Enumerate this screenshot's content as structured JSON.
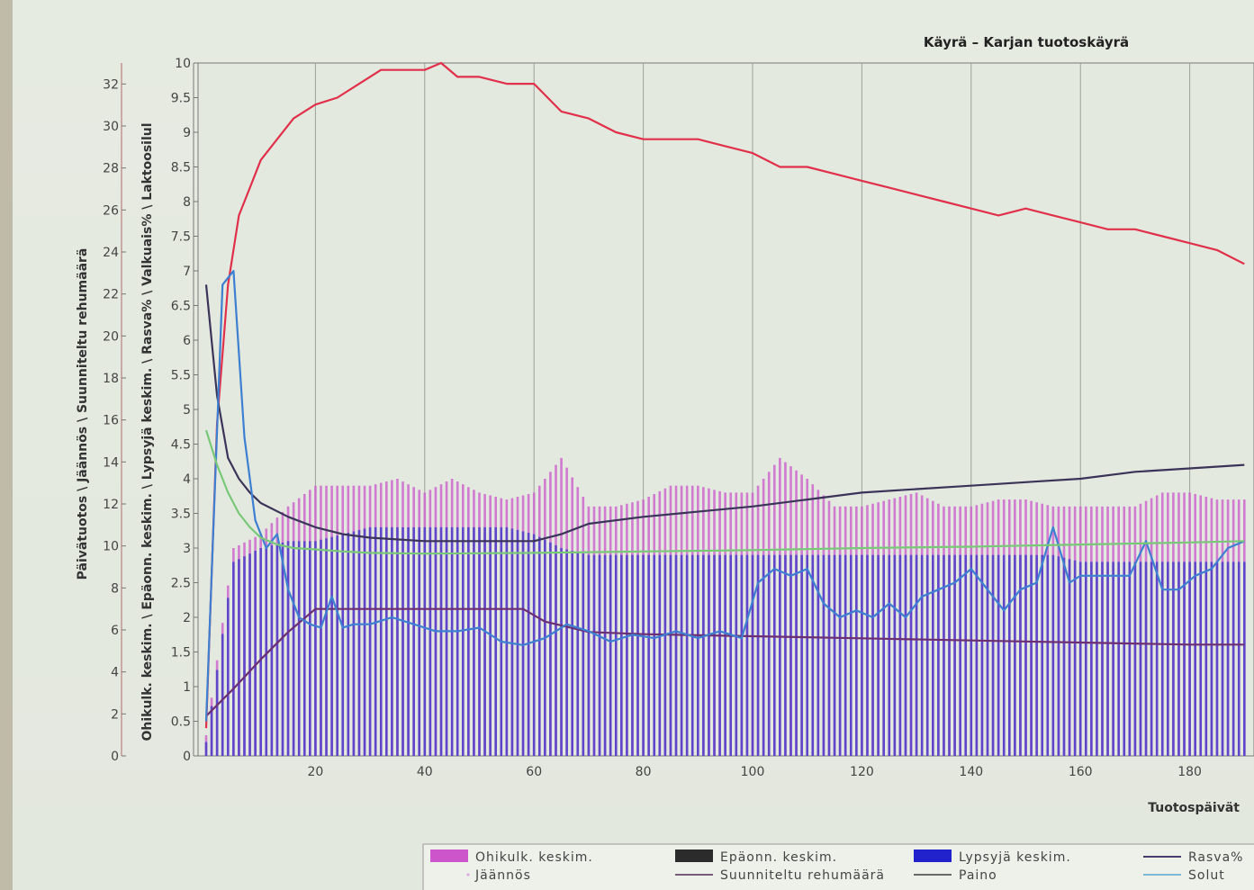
{
  "chart_data": {
    "type": "bar",
    "title": "Käyrä – Karjan tuotoskäyrä",
    "xlabel": "Tuotospäivät",
    "ylabel_outer": "Päivätuotos \\ Jäännös \\ Suunniteltu rehumäärä",
    "ylabel_inner": "Ohikulk. keskim. \\ Epäonn. keskim. \\ Lypsyjä keskim. \\ Rasva% \\ Valkuais% \\ Laktoosilul",
    "xlim": [
      0,
      190
    ],
    "x_ticks": [
      "20",
      "40",
      "60",
      "80",
      "100",
      "120",
      "140",
      "160",
      "180"
    ],
    "y_outer_ticks": [
      "0",
      "2",
      "4",
      "6",
      "8",
      "10",
      "12",
      "14",
      "16",
      "18",
      "20",
      "22",
      "24",
      "26",
      "28",
      "30",
      "32"
    ],
    "y_inner_ticks": [
      "0",
      "0.5",
      "1",
      "1.5",
      "2",
      "2.5",
      "3",
      "3.5",
      "4",
      "4.5",
      "5",
      "5.5",
      "6",
      "6.5",
      "7",
      "7.5",
      "8",
      "8.5",
      "9",
      "9.5",
      "10"
    ],
    "ylim_outer": [
      0,
      33
    ],
    "ylim_inner": [
      0,
      10
    ],
    "grid": "vertical",
    "legend_position": "bottom",
    "series": [
      {
        "name": "Ohikulk. keskim.",
        "kind": "bar",
        "axis": "inner",
        "color": "#cc66cc",
        "x": [
          0,
          5,
          10,
          15,
          20,
          25,
          30,
          35,
          40,
          45,
          50,
          55,
          60,
          65,
          70,
          75,
          80,
          85,
          90,
          95,
          100,
          105,
          110,
          115,
          120,
          125,
          130,
          135,
          140,
          145,
          150,
          155,
          160,
          165,
          170,
          175,
          180,
          185,
          190
        ],
        "y": [
          0.3,
          3.0,
          3.2,
          3.6,
          3.9,
          3.9,
          3.9,
          4.0,
          3.8,
          4.0,
          3.8,
          3.7,
          3.8,
          4.3,
          3.6,
          3.6,
          3.7,
          3.9,
          3.9,
          3.8,
          3.8,
          4.3,
          4.0,
          3.6,
          3.6,
          3.7,
          3.8,
          3.6,
          3.6,
          3.7,
          3.7,
          3.6,
          3.6,
          3.6,
          3.6,
          3.8,
          3.8,
          3.7,
          3.7
        ]
      },
      {
        "name": "Jäännös",
        "kind": "bar",
        "axis": "inner",
        "color": "#d6a3de",
        "values": []
      },
      {
        "name": "Epäonn. keskim.",
        "kind": "bar",
        "axis": "inner",
        "color": "#2b2b2b",
        "values": []
      },
      {
        "name": "Suunniteltu rehumäärä",
        "kind": "line",
        "axis": "outer",
        "color": "#6b2f72",
        "x": [
          0,
          5,
          10,
          15,
          20,
          30,
          40,
          50,
          58,
          62,
          70,
          80,
          100,
          120,
          140,
          160,
          180,
          190
        ],
        "y": [
          1.9,
          3.2,
          4.6,
          5.9,
          7.0,
          7.0,
          7.0,
          7.0,
          7.0,
          6.4,
          5.9,
          5.8,
          5.7,
          5.6,
          5.5,
          5.4,
          5.3,
          5.3
        ]
      },
      {
        "name": "Lypsyjä keskim.",
        "kind": "bar",
        "axis": "inner",
        "color": "#4b3cc8",
        "x": [
          0,
          5,
          10,
          15,
          20,
          25,
          30,
          35,
          40,
          45,
          50,
          55,
          60,
          65,
          70,
          75,
          80,
          85,
          90,
          95,
          100,
          105,
          110,
          115,
          120,
          125,
          130,
          135,
          140,
          145,
          150,
          155,
          160,
          165,
          170,
          175,
          180,
          185,
          190
        ],
        "y": [
          0.2,
          2.8,
          3.0,
          3.1,
          3.1,
          3.2,
          3.3,
          3.3,
          3.3,
          3.3,
          3.3,
          3.3,
          3.2,
          3.0,
          2.9,
          2.9,
          2.9,
          2.9,
          2.9,
          2.9,
          2.9,
          2.9,
          2.9,
          2.9,
          2.9,
          2.9,
          2.9,
          2.9,
          2.9,
          2.9,
          2.9,
          2.9,
          2.8,
          2.8,
          2.8,
          2.8,
          2.8,
          2.8,
          2.8
        ]
      },
      {
        "name": "Paino",
        "kind": "line",
        "axis": "inner",
        "color": "#e0304a",
        "x": [
          0,
          2,
          4,
          6,
          8,
          10,
          13,
          16,
          20,
          24,
          28,
          32,
          36,
          40,
          43,
          46,
          50,
          55,
          60,
          65,
          70,
          75,
          80,
          85,
          90,
          95,
          100,
          105,
          110,
          115,
          120,
          125,
          130,
          135,
          140,
          145,
          150,
          155,
          160,
          165,
          170,
          175,
          180,
          185,
          190
        ],
        "y": [
          0.4,
          4.8,
          6.8,
          7.8,
          8.2,
          8.6,
          8.9,
          9.2,
          9.4,
          9.5,
          9.7,
          9.9,
          9.9,
          9.9,
          10.0,
          9.8,
          9.8,
          9.7,
          9.7,
          9.3,
          9.2,
          9.0,
          8.9,
          8.9,
          8.9,
          8.8,
          8.7,
          8.5,
          8.5,
          8.4,
          8.3,
          8.2,
          8.1,
          8.0,
          7.9,
          7.8,
          7.9,
          7.8,
          7.7,
          7.6,
          7.6,
          7.5,
          7.4,
          7.3,
          7.1
        ]
      },
      {
        "name": "Rasva%",
        "kind": "line",
        "axis": "inner",
        "color": "#3a3458",
        "x": [
          0,
          2,
          4,
          6,
          8,
          10,
          15,
          20,
          25,
          30,
          40,
          50,
          60,
          65,
          70,
          80,
          100,
          110,
          120,
          130,
          140,
          150,
          160,
          170,
          180,
          190
        ],
        "y": [
          6.8,
          5.2,
          4.3,
          4.0,
          3.8,
          3.65,
          3.45,
          3.3,
          3.2,
          3.15,
          3.1,
          3.1,
          3.1,
          3.2,
          3.35,
          3.45,
          3.6,
          3.7,
          3.8,
          3.85,
          3.9,
          3.95,
          4.0,
          4.1,
          4.15,
          4.2
        ]
      },
      {
        "name": "Solut",
        "kind": "line",
        "axis": "inner",
        "color": "#3d7fd0",
        "x": [
          0,
          3,
          5,
          7,
          9,
          11,
          13,
          15,
          17,
          19,
          21,
          23,
          25,
          27,
          30,
          34,
          38,
          42,
          46,
          50,
          54,
          58,
          62,
          66,
          70,
          74,
          78,
          82,
          86,
          90,
          94,
          98,
          101,
          104,
          107,
          110,
          113,
          116,
          119,
          122,
          125,
          128,
          131,
          134,
          137,
          140,
          143,
          146,
          149,
          152,
          155,
          158,
          160,
          163,
          166,
          169,
          172,
          175,
          178,
          181,
          184,
          187,
          190
        ],
        "y": [
          0.5,
          6.8,
          7.0,
          4.6,
          3.4,
          3.0,
          3.2,
          2.4,
          2.0,
          1.9,
          1.85,
          2.3,
          1.85,
          1.9,
          1.9,
          2.0,
          1.9,
          1.8,
          1.8,
          1.85,
          1.65,
          1.6,
          1.7,
          1.9,
          1.8,
          1.65,
          1.75,
          1.7,
          1.8,
          1.7,
          1.8,
          1.7,
          2.5,
          2.7,
          2.6,
          2.7,
          2.2,
          2.0,
          2.1,
          2.0,
          2.2,
          2.0,
          2.3,
          2.4,
          2.5,
          2.7,
          2.4,
          2.1,
          2.4,
          2.5,
          3.3,
          2.5,
          2.6,
          2.6,
          2.6,
          2.6,
          3.1,
          2.4,
          2.4,
          2.6,
          2.7,
          3.0,
          3.1
        ]
      },
      {
        "name": "Laktoosi",
        "kind": "line",
        "axis": "inner",
        "color": "#78c878",
        "x": [
          0,
          2,
          4,
          6,
          8,
          10,
          13,
          16,
          20,
          25,
          30,
          40,
          60,
          80,
          100,
          120,
          140,
          160,
          180,
          190
        ],
        "y": [
          4.7,
          4.2,
          3.8,
          3.5,
          3.3,
          3.15,
          3.05,
          3.0,
          2.98,
          2.95,
          2.93,
          2.92,
          2.93,
          2.95,
          2.97,
          3.0,
          3.02,
          3.05,
          3.08,
          3.1
        ]
      }
    ],
    "legend": [
      {
        "label": "Ohikulk. keskim.",
        "swatch": "box",
        "color": "#cc55cc"
      },
      {
        "label": "Epäonn. keskim.",
        "swatch": "box",
        "color": "#2b2b2b"
      },
      {
        "label": "Lypsyjä keskim.",
        "swatch": "box",
        "color": "#2222cc"
      },
      {
        "label": "Rasva%",
        "swatch": "line",
        "color": "#4a3c6e"
      },
      {
        "label": "Jäännös",
        "swatch": "dot",
        "color": "#d6a3de"
      },
      {
        "label": "Suunniteltu rehumäärä",
        "swatch": "line",
        "color": "#7a5a7a"
      },
      {
        "label": "Paino",
        "swatch": "line",
        "color": "#6a6a6a"
      },
      {
        "label": "Solut",
        "swatch": "line",
        "color": "#7cb8d8"
      }
    ]
  }
}
